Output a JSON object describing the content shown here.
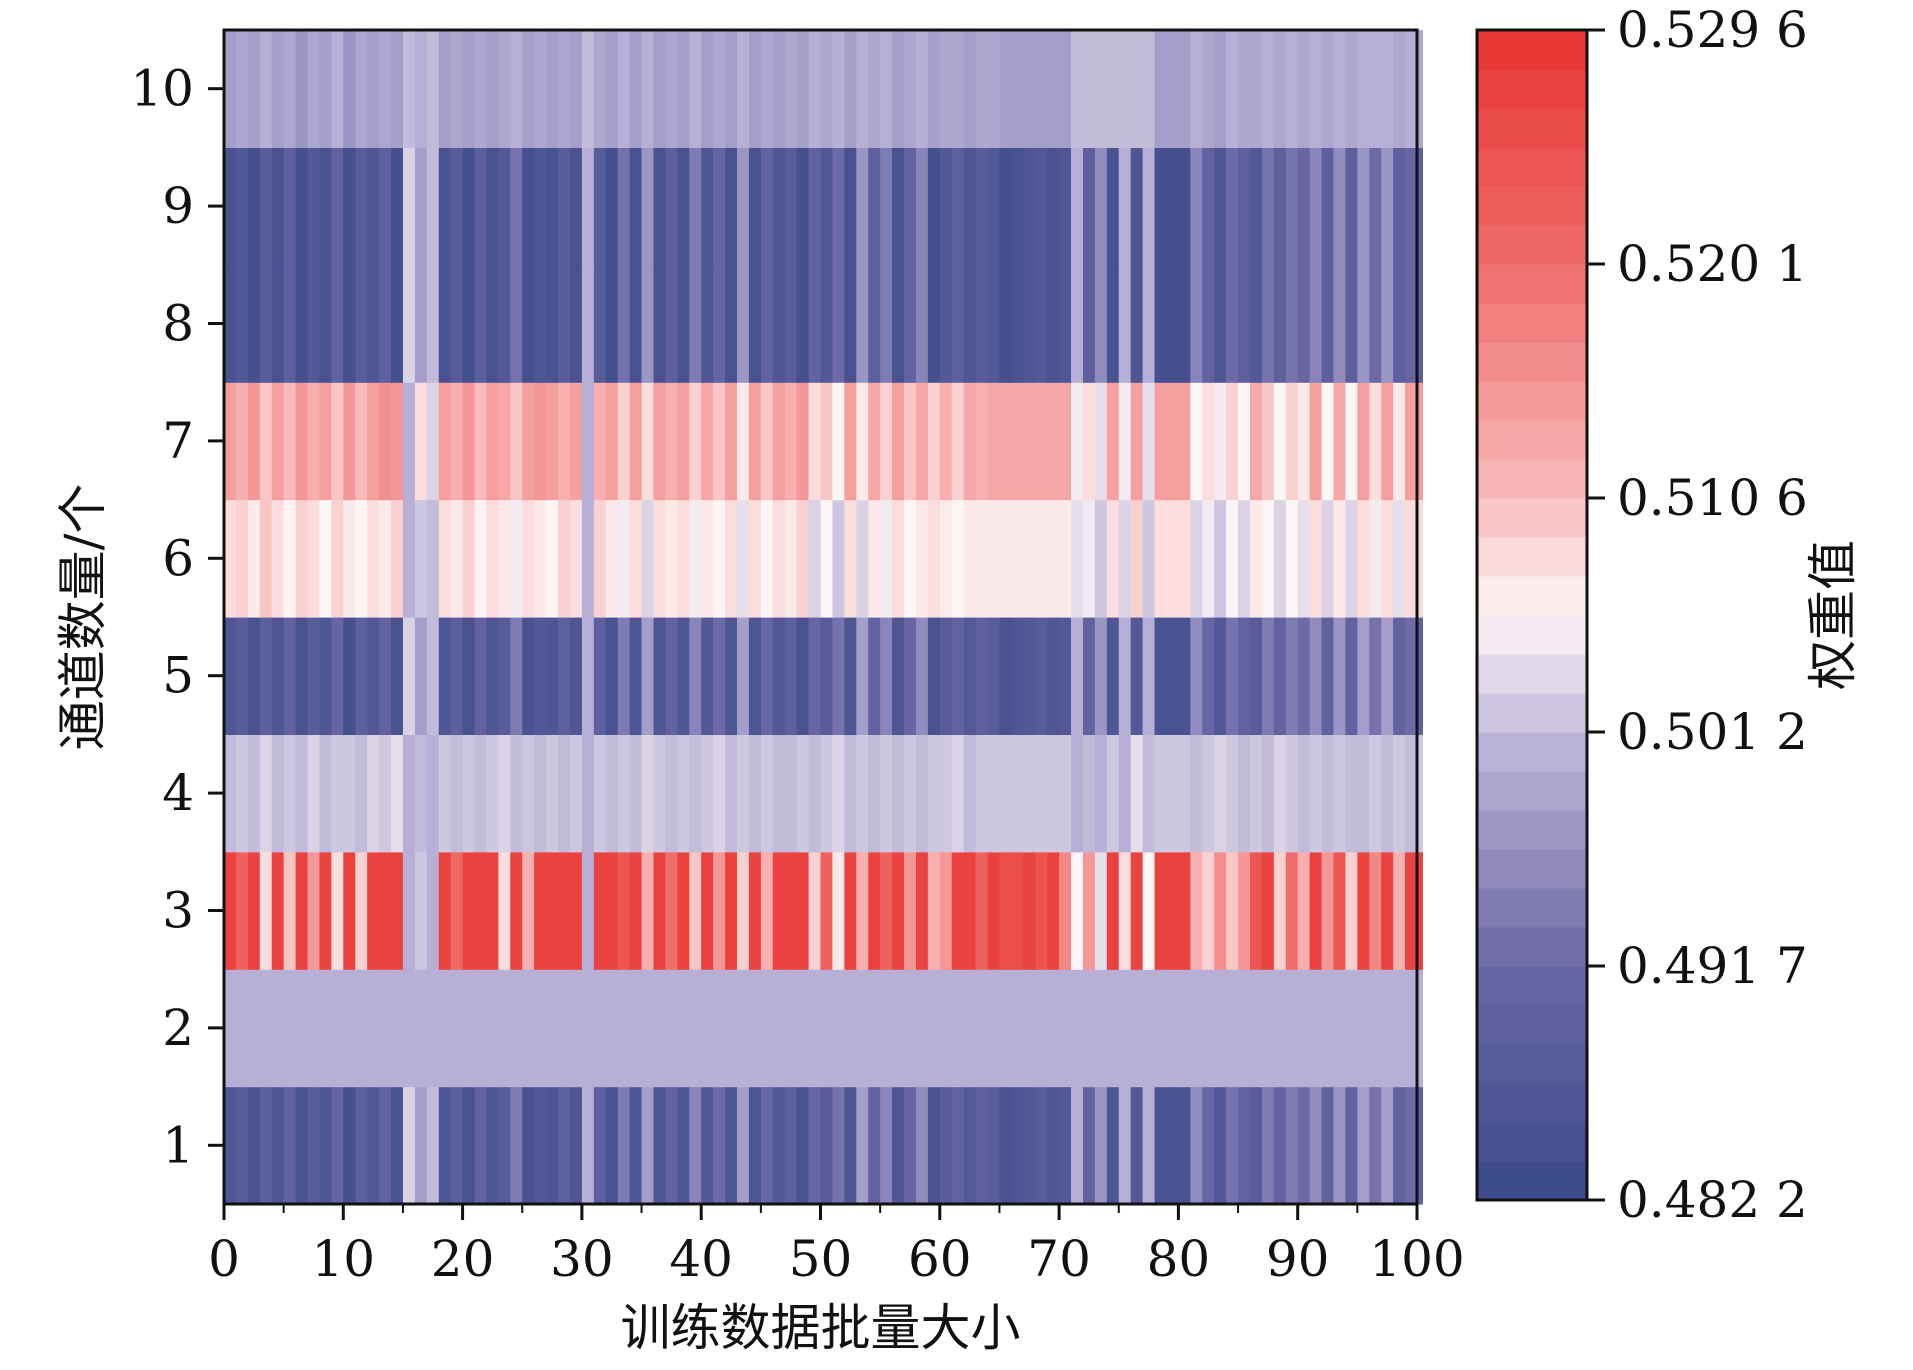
{
  "chart_data": {
    "type": "heatmap",
    "title": "",
    "xlabel": "训练数据批量大小",
    "ylabel": "通道数量/个",
    "colorbar_label": "权重值",
    "xlim": [
      0,
      100
    ],
    "ylim": [
      0.5,
      10.5
    ],
    "x_ticks": [
      "0",
      "10",
      "20",
      "30",
      "40",
      "50",
      "60",
      "70",
      "80",
      "90",
      "100"
    ],
    "y_ticks": [
      "1",
      "2",
      "3",
      "4",
      "5",
      "6",
      "7",
      "8",
      "9",
      "10"
    ],
    "colorbar_ticks": [
      "0.482 2",
      "0.491 7",
      "0.501 2",
      "0.510 6",
      "0.520 1",
      "0.529 6"
    ],
    "value_range": [
      0.4822,
      0.5296
    ],
    "colormap": {
      "low": "#3b4a8a",
      "mid_low": "#b9b1d6",
      "mid": "#fdf6f6",
      "mid_high": "#f7b3b3",
      "high": "#e8332f"
    },
    "columns": 101,
    "rows": [
      {
        "channel": 1,
        "values": [
          0.486,
          0.488,
          0.485,
          0.489,
          0.486,
          0.49,
          0.485,
          0.488,
          0.486,
          0.491,
          0.484,
          0.489,
          0.487,
          0.49,
          0.485,
          0.503,
          0.498,
          0.501,
          0.486,
          0.489,
          0.485,
          0.49,
          0.486,
          0.488,
          0.494,
          0.485,
          0.487,
          0.486,
          0.489,
          0.486,
          0.5,
          0.489,
          0.485,
          0.494,
          0.486,
          0.498,
          0.486,
          0.49,
          0.486,
          0.495,
          0.487,
          0.492,
          0.486,
          0.498,
          0.486,
          0.491,
          0.487,
          0.489,
          0.485,
          0.491,
          0.488,
          0.493,
          0.486,
          0.498,
          0.49,
          0.495,
          0.486,
          0.491,
          0.496,
          0.485,
          0.488,
          0.49,
          0.487,
          0.489,
          0.488,
          0.485,
          0.486,
          0.487,
          0.488,
          0.486,
          0.487,
          0.5,
          0.49,
          0.497,
          0.486,
          0.5,
          0.487,
          0.5,
          0.485,
          0.485,
          0.485,
          0.496,
          0.491,
          0.487,
          0.493,
          0.49,
          0.488,
          0.494,
          0.49,
          0.494,
          0.492,
          0.496,
          0.49,
          0.497,
          0.49,
          0.498,
          0.493,
          0.498,
          0.49,
          0.492,
          0.49
        ]
      },
      {
        "channel": 2,
        "values": [
          0.5,
          0.5,
          0.5,
          0.5,
          0.5,
          0.5,
          0.5,
          0.5,
          0.5,
          0.5,
          0.5,
          0.5,
          0.5,
          0.5,
          0.5,
          0.5,
          0.5,
          0.5,
          0.5,
          0.5,
          0.5,
          0.5,
          0.5,
          0.5,
          0.5,
          0.5,
          0.5,
          0.5,
          0.5,
          0.5,
          0.5,
          0.5,
          0.5,
          0.5,
          0.5,
          0.5,
          0.5,
          0.5,
          0.5,
          0.5,
          0.5,
          0.5,
          0.5,
          0.5,
          0.5,
          0.5,
          0.5,
          0.5,
          0.5,
          0.5,
          0.5,
          0.5,
          0.5,
          0.5,
          0.5,
          0.5,
          0.5,
          0.5,
          0.5,
          0.5,
          0.5,
          0.5,
          0.5,
          0.5,
          0.5,
          0.5,
          0.5,
          0.5,
          0.5,
          0.5,
          0.5,
          0.5,
          0.5,
          0.5,
          0.5,
          0.5,
          0.5,
          0.5,
          0.5,
          0.5,
          0.5,
          0.5,
          0.5,
          0.5,
          0.5,
          0.5,
          0.5,
          0.5,
          0.5,
          0.5,
          0.5,
          0.5,
          0.5,
          0.5,
          0.5,
          0.5,
          0.5,
          0.5,
          0.5,
          0.5,
          0.5
        ]
      },
      {
        "channel": 3,
        "values": [
          0.527,
          0.522,
          0.527,
          0.508,
          0.527,
          0.51,
          0.527,
          0.515,
          0.527,
          0.508,
          0.527,
          0.509,
          0.527,
          0.527,
          0.527,
          0.5,
          0.502,
          0.5,
          0.527,
          0.521,
          0.527,
          0.527,
          0.527,
          0.508,
          0.527,
          0.512,
          0.527,
          0.527,
          0.527,
          0.527,
          0.5,
          0.527,
          0.527,
          0.524,
          0.527,
          0.512,
          0.527,
          0.52,
          0.527,
          0.51,
          0.527,
          0.515,
          0.527,
          0.509,
          0.527,
          0.512,
          0.527,
          0.527,
          0.527,
          0.509,
          0.522,
          0.507,
          0.527,
          0.512,
          0.527,
          0.522,
          0.527,
          0.515,
          0.527,
          0.512,
          0.515,
          0.527,
          0.527,
          0.522,
          0.527,
          0.525,
          0.525,
          0.527,
          0.524,
          0.527,
          0.517,
          0.506,
          0.515,
          0.504,
          0.527,
          0.508,
          0.527,
          0.506,
          0.527,
          0.527,
          0.527,
          0.512,
          0.509,
          0.516,
          0.51,
          0.515,
          0.524,
          0.527,
          0.509,
          0.52,
          0.512,
          0.527,
          0.515,
          0.524,
          0.509,
          0.527,
          0.517,
          0.527,
          0.512,
          0.527,
          0.527
        ]
      },
      {
        "channel": 4,
        "values": [
          0.501,
          0.502,
          0.501,
          0.503,
          0.501,
          0.502,
          0.501,
          0.503,
          0.501,
          0.502,
          0.502,
          0.501,
          0.503,
          0.502,
          0.504,
          0.5,
          0.501,
          0.5,
          0.502,
          0.501,
          0.502,
          0.501,
          0.502,
          0.503,
          0.501,
          0.502,
          0.501,
          0.502,
          0.501,
          0.502,
          0.5,
          0.502,
          0.501,
          0.502,
          0.501,
          0.503,
          0.502,
          0.501,
          0.502,
          0.501,
          0.502,
          0.503,
          0.501,
          0.502,
          0.501,
          0.502,
          0.501,
          0.501,
          0.502,
          0.501,
          0.502,
          0.503,
          0.501,
          0.502,
          0.501,
          0.502,
          0.501,
          0.502,
          0.501,
          0.502,
          0.502,
          0.503,
          0.501,
          0.502,
          0.502,
          0.502,
          0.502,
          0.502,
          0.502,
          0.502,
          0.502,
          0.5,
          0.501,
          0.5,
          0.502,
          0.5,
          0.504,
          0.501,
          0.502,
          0.502,
          0.502,
          0.501,
          0.502,
          0.503,
          0.502,
          0.501,
          0.502,
          0.501,
          0.503,
          0.502,
          0.501,
          0.502,
          0.501,
          0.502,
          0.501,
          0.501,
          0.502,
          0.501,
          0.502,
          0.501,
          0.502
        ]
      },
      {
        "channel": 5,
        "values": [
          0.486,
          0.488,
          0.485,
          0.489,
          0.486,
          0.49,
          0.485,
          0.488,
          0.486,
          0.491,
          0.484,
          0.489,
          0.487,
          0.49,
          0.485,
          0.503,
          0.498,
          0.501,
          0.486,
          0.489,
          0.485,
          0.49,
          0.486,
          0.488,
          0.494,
          0.485,
          0.487,
          0.486,
          0.489,
          0.486,
          0.5,
          0.489,
          0.485,
          0.494,
          0.486,
          0.498,
          0.486,
          0.49,
          0.486,
          0.495,
          0.487,
          0.492,
          0.486,
          0.498,
          0.486,
          0.491,
          0.487,
          0.489,
          0.485,
          0.491,
          0.488,
          0.493,
          0.486,
          0.498,
          0.49,
          0.495,
          0.486,
          0.491,
          0.496,
          0.485,
          0.488,
          0.49,
          0.487,
          0.489,
          0.488,
          0.485,
          0.486,
          0.487,
          0.488,
          0.486,
          0.487,
          0.5,
          0.49,
          0.497,
          0.486,
          0.5,
          0.487,
          0.5,
          0.485,
          0.485,
          0.485,
          0.496,
          0.491,
          0.487,
          0.493,
          0.49,
          0.488,
          0.494,
          0.49,
          0.494,
          0.492,
          0.496,
          0.49,
          0.497,
          0.49,
          0.498,
          0.493,
          0.498,
          0.49,
          0.492,
          0.49
        ]
      },
      {
        "channel": 6,
        "values": [
          0.508,
          0.509,
          0.507,
          0.51,
          0.508,
          0.506,
          0.509,
          0.508,
          0.506,
          0.509,
          0.507,
          0.506,
          0.508,
          0.507,
          0.509,
          0.5,
          0.502,
          0.501,
          0.508,
          0.507,
          0.509,
          0.506,
          0.508,
          0.507,
          0.505,
          0.508,
          0.507,
          0.506,
          0.509,
          0.508,
          0.5,
          0.509,
          0.507,
          0.505,
          0.508,
          0.503,
          0.508,
          0.507,
          0.508,
          0.505,
          0.507,
          0.506,
          0.508,
          0.504,
          0.508,
          0.506,
          0.508,
          0.507,
          0.509,
          0.503,
          0.506,
          0.502,
          0.508,
          0.503,
          0.507,
          0.505,
          0.508,
          0.506,
          0.507,
          0.508,
          0.507,
          0.506,
          0.507,
          0.507,
          0.507,
          0.507,
          0.507,
          0.507,
          0.507,
          0.507,
          0.507,
          0.504,
          0.505,
          0.502,
          0.508,
          0.503,
          0.509,
          0.502,
          0.508,
          0.508,
          0.508,
          0.503,
          0.505,
          0.502,
          0.506,
          0.503,
          0.507,
          0.506,
          0.503,
          0.506,
          0.504,
          0.508,
          0.503,
          0.507,
          0.503,
          0.508,
          0.505,
          0.508,
          0.504,
          0.508,
          0.508
        ]
      },
      {
        "channel": 7,
        "values": [
          0.514,
          0.512,
          0.515,
          0.51,
          0.514,
          0.511,
          0.515,
          0.512,
          0.514,
          0.51,
          0.515,
          0.511,
          0.514,
          0.516,
          0.515,
          0.5,
          0.508,
          0.503,
          0.514,
          0.512,
          0.515,
          0.511,
          0.514,
          0.513,
          0.51,
          0.514,
          0.515,
          0.514,
          0.512,
          0.514,
          0.5,
          0.512,
          0.514,
          0.509,
          0.514,
          0.508,
          0.514,
          0.512,
          0.514,
          0.509,
          0.513,
          0.51,
          0.514,
          0.507,
          0.514,
          0.51,
          0.514,
          0.512,
          0.515,
          0.508,
          0.51,
          0.506,
          0.514,
          0.507,
          0.513,
          0.509,
          0.514,
          0.51,
          0.513,
          0.509,
          0.512,
          0.509,
          0.513,
          0.512,
          0.513,
          0.513,
          0.513,
          0.513,
          0.513,
          0.513,
          0.513,
          0.505,
          0.508,
          0.504,
          0.514,
          0.505,
          0.514,
          0.504,
          0.514,
          0.514,
          0.514,
          0.506,
          0.508,
          0.505,
          0.509,
          0.506,
          0.513,
          0.51,
          0.506,
          0.509,
          0.507,
          0.514,
          0.506,
          0.513,
          0.506,
          0.514,
          0.508,
          0.514,
          0.507,
          0.514,
          0.514
        ]
      },
      {
        "channel": 8,
        "values": [
          0.485,
          0.487,
          0.484,
          0.488,
          0.485,
          0.489,
          0.484,
          0.487,
          0.485,
          0.49,
          0.484,
          0.488,
          0.486,
          0.489,
          0.484,
          0.503,
          0.498,
          0.501,
          0.485,
          0.488,
          0.484,
          0.489,
          0.485,
          0.487,
          0.493,
          0.484,
          0.486,
          0.485,
          0.488,
          0.485,
          0.5,
          0.488,
          0.484,
          0.493,
          0.485,
          0.497,
          0.485,
          0.489,
          0.485,
          0.494,
          0.486,
          0.491,
          0.485,
          0.497,
          0.485,
          0.49,
          0.486,
          0.488,
          0.484,
          0.49,
          0.487,
          0.492,
          0.485,
          0.497,
          0.489,
          0.494,
          0.485,
          0.49,
          0.495,
          0.484,
          0.487,
          0.489,
          0.486,
          0.488,
          0.487,
          0.484,
          0.485,
          0.486,
          0.487,
          0.485,
          0.486,
          0.5,
          0.489,
          0.496,
          0.485,
          0.5,
          0.486,
          0.5,
          0.484,
          0.484,
          0.484,
          0.495,
          0.49,
          0.486,
          0.492,
          0.489,
          0.487,
          0.493,
          0.489,
          0.493,
          0.491,
          0.495,
          0.489,
          0.496,
          0.489,
          0.497,
          0.492,
          0.497,
          0.489,
          0.491,
          0.489
        ]
      },
      {
        "channel": 9,
        "values": [
          0.485,
          0.487,
          0.484,
          0.488,
          0.485,
          0.489,
          0.484,
          0.487,
          0.485,
          0.49,
          0.484,
          0.488,
          0.486,
          0.489,
          0.484,
          0.503,
          0.498,
          0.501,
          0.485,
          0.488,
          0.484,
          0.489,
          0.485,
          0.487,
          0.493,
          0.484,
          0.486,
          0.485,
          0.488,
          0.485,
          0.5,
          0.488,
          0.484,
          0.493,
          0.485,
          0.497,
          0.485,
          0.489,
          0.485,
          0.494,
          0.486,
          0.491,
          0.485,
          0.497,
          0.485,
          0.49,
          0.486,
          0.488,
          0.484,
          0.49,
          0.487,
          0.492,
          0.485,
          0.497,
          0.489,
          0.494,
          0.485,
          0.49,
          0.495,
          0.484,
          0.487,
          0.489,
          0.486,
          0.488,
          0.487,
          0.484,
          0.485,
          0.486,
          0.487,
          0.485,
          0.486,
          0.5,
          0.489,
          0.496,
          0.485,
          0.5,
          0.486,
          0.5,
          0.484,
          0.484,
          0.484,
          0.495,
          0.49,
          0.486,
          0.492,
          0.489,
          0.487,
          0.493,
          0.489,
          0.493,
          0.491,
          0.495,
          0.489,
          0.496,
          0.489,
          0.497,
          0.492,
          0.497,
          0.489,
          0.491,
          0.489
        ]
      },
      {
        "channel": 10,
        "values": [
          0.498,
          0.499,
          0.498,
          0.5,
          0.498,
          0.499,
          0.497,
          0.499,
          0.498,
          0.5,
          0.497,
          0.499,
          0.498,
          0.499,
          0.498,
          0.501,
          0.5,
          0.501,
          0.498,
          0.499,
          0.498,
          0.499,
          0.498,
          0.499,
          0.5,
          0.498,
          0.499,
          0.498,
          0.499,
          0.498,
          0.501,
          0.499,
          0.498,
          0.5,
          0.498,
          0.5,
          0.498,
          0.499,
          0.498,
          0.5,
          0.498,
          0.499,
          0.498,
          0.5,
          0.498,
          0.499,
          0.498,
          0.499,
          0.498,
          0.5,
          0.499,
          0.5,
          0.498,
          0.5,
          0.499,
          0.5,
          0.498,
          0.499,
          0.5,
          0.498,
          0.499,
          0.499,
          0.498,
          0.499,
          0.499,
          0.498,
          0.498,
          0.498,
          0.498,
          0.498,
          0.498,
          0.501,
          0.501,
          0.501,
          0.501,
          0.501,
          0.501,
          0.501,
          0.498,
          0.498,
          0.498,
          0.5,
          0.499,
          0.498,
          0.5,
          0.499,
          0.499,
          0.5,
          0.499,
          0.5,
          0.499,
          0.5,
          0.499,
          0.5,
          0.499,
          0.5,
          0.5,
          0.5,
          0.499,
          0.5,
          0.499
        ]
      }
    ]
  }
}
